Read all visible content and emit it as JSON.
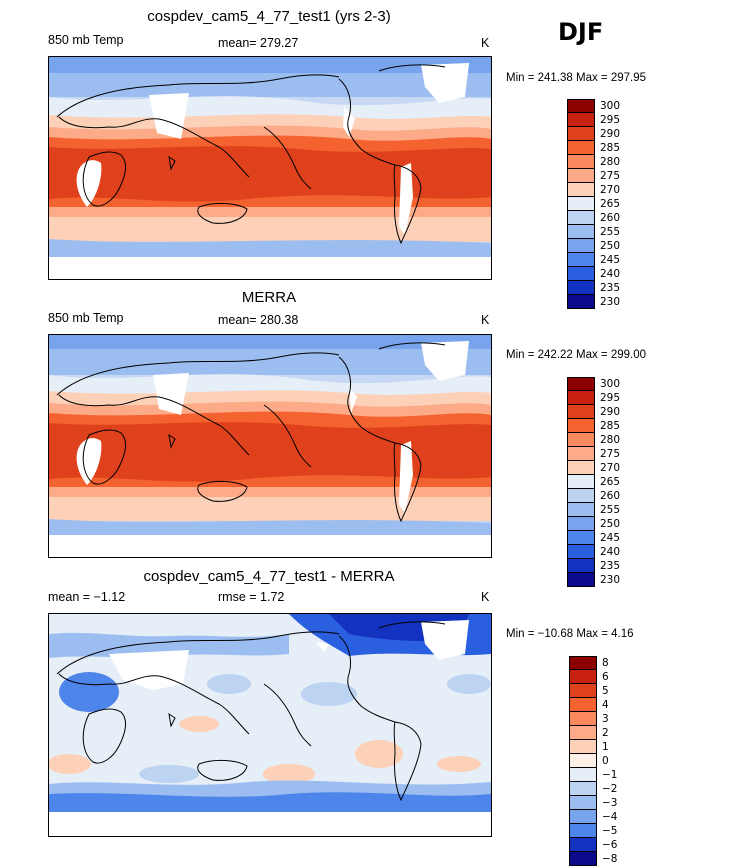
{
  "season": "DJF",
  "panels": [
    {
      "title": "cospdev_cam5_4_77_test1 (yrs 2-3)",
      "left_label": "850 mb Temp",
      "center_label": "mean= 279.27",
      "units": "K",
      "minmax": "Min = 241.38 Max = 297.95",
      "colorbar_labels": [
        "300",
        "295",
        "290",
        "285",
        "280",
        "275",
        "270",
        "265",
        "260",
        "255",
        "250",
        "245",
        "240",
        "235",
        "230"
      ],
      "colorbar_colors": [
        "#8c0000",
        "#c8210f",
        "#e0411d",
        "#f4632f",
        "#fa8a5e",
        "#fcaa88",
        "#fdd0b8",
        "#e6eef7",
        "#bcd3f2",
        "#9bbdf0",
        "#78a4ee",
        "#4e85ea",
        "#2a60e0",
        "#1232bf",
        "#0a0a8a"
      ]
    },
    {
      "title": "MERRA",
      "left_label": "850 mb Temp",
      "center_label": "mean= 280.38",
      "units": "K",
      "minmax": "Min = 242.22 Max = 299.00",
      "colorbar_labels": [
        "300",
        "295",
        "290",
        "285",
        "280",
        "275",
        "270",
        "265",
        "260",
        "255",
        "250",
        "245",
        "240",
        "235",
        "230"
      ],
      "colorbar_colors": [
        "#8c0000",
        "#c8210f",
        "#e0411d",
        "#f4632f",
        "#fa8a5e",
        "#fcaa88",
        "#fdd0b8",
        "#e6eef7",
        "#bcd3f2",
        "#9bbdf0",
        "#78a4ee",
        "#4e85ea",
        "#2a60e0",
        "#1232bf",
        "#0a0a8a"
      ]
    },
    {
      "title": "cospdev_cam5_4_77_test1 - MERRA",
      "left_label": "mean =   −1.12",
      "center_label": "rmse =    1.72",
      "units": "K",
      "minmax": "Min = −10.68 Max =    4.16",
      "colorbar_labels": [
        "8",
        "6",
        "5",
        "4",
        "3",
        "2",
        "1",
        "0",
        "−1",
        "−2",
        "−3",
        "−4",
        "−5",
        "−6",
        "−8"
      ],
      "colorbar_colors": [
        "#8c0000",
        "#c8210f",
        "#e0411d",
        "#f4632f",
        "#fa8a5e",
        "#fcaa88",
        "#fdd0b8",
        "#fdf0e6",
        "#e6eef7",
        "#bcd3f2",
        "#9bbdf0",
        "#78a4ee",
        "#4e85ea",
        "#1232bf",
        "#0a0a8a"
      ]
    }
  ]
}
